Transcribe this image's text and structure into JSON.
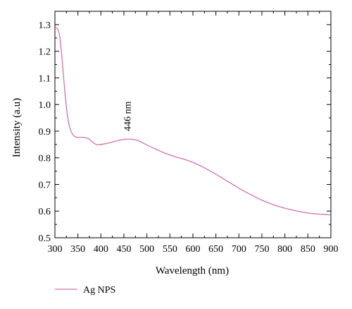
{
  "chart_data": {
    "type": "line",
    "title": "",
    "xlabel": "Wavelength (nm)",
    "ylabel": "Intensity (a.u)",
    "xlim": [
      300,
      900
    ],
    "ylim": [
      0.5,
      1.35
    ],
    "xticks": [
      300,
      350,
      400,
      450,
      500,
      550,
      600,
      650,
      700,
      750,
      800,
      850,
      900
    ],
    "yticks": [
      0.5,
      0.6,
      0.7,
      0.8,
      0.9,
      1.0,
      1.1,
      1.2,
      1.3
    ],
    "ytick_labels": [
      "0.5",
      "0.6",
      "0.7",
      "0.8",
      "0.9",
      "1.0",
      "1.1",
      "1.2",
      "1.3"
    ],
    "grid": false,
    "legend_position": "bottom-left",
    "series": [
      {
        "name": "Ag NPS",
        "color": "#d070b0",
        "x": [
          300,
          305,
          310,
          315,
          320,
          325,
          330,
          335,
          340,
          345,
          350,
          355,
          360,
          365,
          370,
          375,
          380,
          385,
          390,
          395,
          400,
          410,
          420,
          430,
          440,
          450,
          460,
          470,
          480,
          490,
          500,
          520,
          540,
          560,
          580,
          600,
          620,
          650,
          680,
          700,
          720,
          750,
          780,
          800,
          830,
          850,
          870,
          900
        ],
        "y": [
          1.29,
          1.285,
          1.26,
          1.18,
          1.08,
          0.99,
          0.93,
          0.9,
          0.885,
          0.878,
          0.877,
          0.877,
          0.877,
          0.876,
          0.874,
          0.87,
          0.862,
          0.855,
          0.85,
          0.849,
          0.85,
          0.853,
          0.857,
          0.862,
          0.866,
          0.869,
          0.87,
          0.869,
          0.865,
          0.857,
          0.848,
          0.832,
          0.817,
          0.805,
          0.795,
          0.783,
          0.767,
          0.738,
          0.707,
          0.686,
          0.667,
          0.641,
          0.621,
          0.611,
          0.599,
          0.593,
          0.589,
          0.586
        ]
      }
    ],
    "annotations": [
      {
        "text": "446 nm",
        "x": 475,
        "y": 0.9,
        "rotation": "vertical"
      }
    ]
  }
}
